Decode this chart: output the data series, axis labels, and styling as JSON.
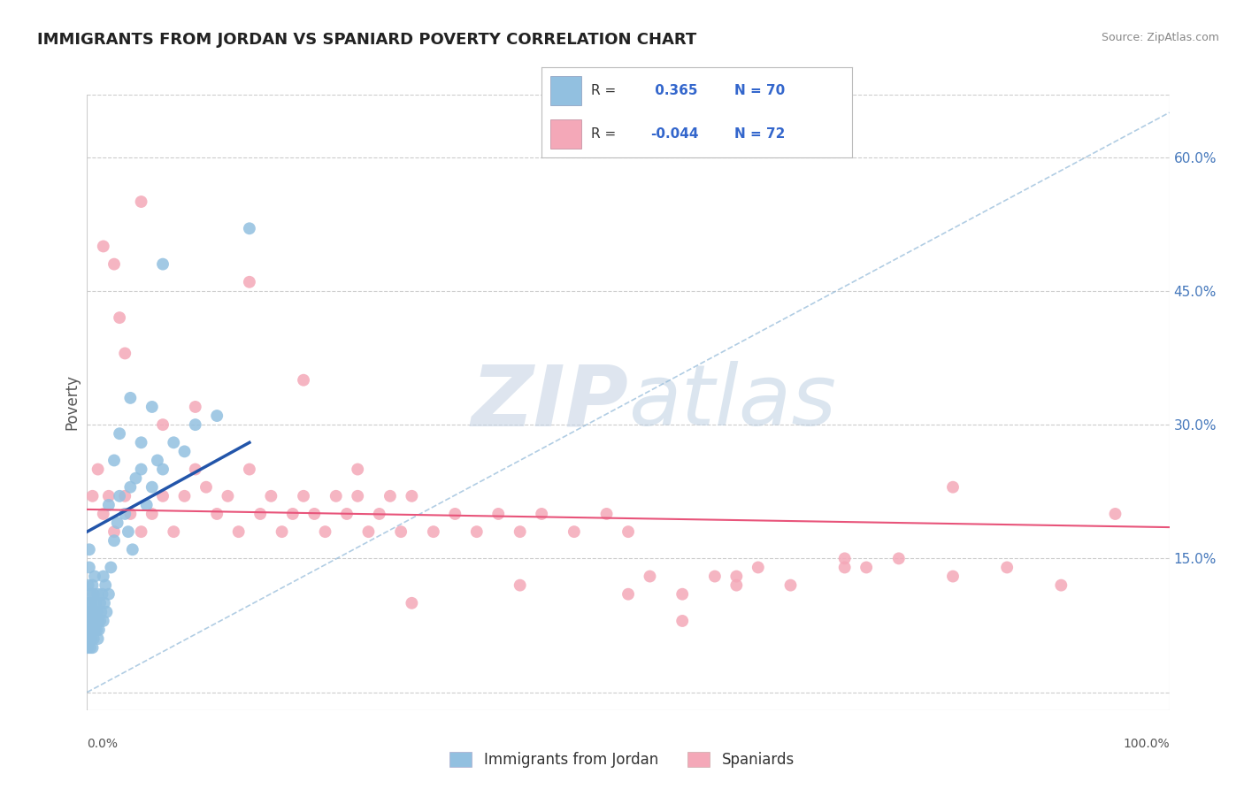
{
  "title": "IMMIGRANTS FROM JORDAN VS SPANIARD POVERTY CORRELATION CHART",
  "source": "Source: ZipAtlas.com",
  "ylabel": "Poverty",
  "y_ticks": [
    0.0,
    0.15,
    0.3,
    0.45,
    0.6
  ],
  "y_tick_labels_right": [
    "",
    "15.0%",
    "30.0%",
    "45.0%",
    "60.0%"
  ],
  "x_lim": [
    0.0,
    1.0
  ],
  "y_lim": [
    -0.02,
    0.67
  ],
  "R_jordan": 0.365,
  "N_jordan": 70,
  "R_spaniard": -0.044,
  "N_spaniard": 72,
  "color_jordan": "#92c0e0",
  "color_spaniard": "#f4a8b8",
  "color_jordan_reg": "#2255aa",
  "color_spaniard_reg": "#e8547a",
  "color_diag": "#90b8d8",
  "watermark_color": "#d0dff0",
  "background_color": "#ffffff",
  "grid_color": "#cccccc",
  "label_jordan": "Immigrants from Jordan",
  "label_spaniard": "Spaniards",
  "jordan_x": [
    0.0005,
    0.001,
    0.001,
    0.001,
    0.0015,
    0.002,
    0.002,
    0.002,
    0.002,
    0.003,
    0.003,
    0.003,
    0.003,
    0.004,
    0.004,
    0.004,
    0.005,
    0.005,
    0.005,
    0.005,
    0.006,
    0.006,
    0.006,
    0.007,
    0.007,
    0.007,
    0.008,
    0.008,
    0.009,
    0.009,
    0.01,
    0.01,
    0.01,
    0.011,
    0.012,
    0.012,
    0.013,
    0.014,
    0.015,
    0.015,
    0.016,
    0.017,
    0.018,
    0.02,
    0.02,
    0.022,
    0.025,
    0.028,
    0.03,
    0.035,
    0.038,
    0.04,
    0.042,
    0.045,
    0.05,
    0.055,
    0.06,
    0.065,
    0.07,
    0.08,
    0.09,
    0.1,
    0.12,
    0.025,
    0.03,
    0.04,
    0.05,
    0.06,
    0.07,
    0.15
  ],
  "jordan_y": [
    0.05,
    0.06,
    0.09,
    0.12,
    0.07,
    0.08,
    0.1,
    0.14,
    0.16,
    0.05,
    0.07,
    0.09,
    0.11,
    0.06,
    0.08,
    0.1,
    0.05,
    0.07,
    0.09,
    0.12,
    0.06,
    0.08,
    0.11,
    0.07,
    0.09,
    0.13,
    0.08,
    0.1,
    0.07,
    0.09,
    0.06,
    0.08,
    0.11,
    0.07,
    0.08,
    0.1,
    0.09,
    0.11,
    0.08,
    0.13,
    0.1,
    0.12,
    0.09,
    0.11,
    0.21,
    0.14,
    0.17,
    0.19,
    0.22,
    0.2,
    0.18,
    0.23,
    0.16,
    0.24,
    0.25,
    0.21,
    0.23,
    0.26,
    0.25,
    0.28,
    0.27,
    0.3,
    0.31,
    0.26,
    0.29,
    0.33,
    0.28,
    0.32,
    0.48,
    0.52
  ],
  "spaniard_x": [
    0.005,
    0.01,
    0.015,
    0.02,
    0.025,
    0.03,
    0.035,
    0.04,
    0.05,
    0.06,
    0.07,
    0.08,
    0.09,
    0.1,
    0.11,
    0.12,
    0.13,
    0.14,
    0.15,
    0.16,
    0.17,
    0.18,
    0.19,
    0.2,
    0.21,
    0.22,
    0.23,
    0.24,
    0.25,
    0.26,
    0.27,
    0.28,
    0.29,
    0.3,
    0.32,
    0.34,
    0.36,
    0.38,
    0.4,
    0.42,
    0.45,
    0.48,
    0.5,
    0.52,
    0.55,
    0.58,
    0.6,
    0.62,
    0.65,
    0.7,
    0.72,
    0.75,
    0.8,
    0.85,
    0.9,
    0.95,
    0.015,
    0.025,
    0.035,
    0.05,
    0.07,
    0.1,
    0.15,
    0.2,
    0.25,
    0.3,
    0.4,
    0.5,
    0.6,
    0.7,
    0.8,
    0.55
  ],
  "spaniard_y": [
    0.22,
    0.25,
    0.2,
    0.22,
    0.18,
    0.42,
    0.22,
    0.2,
    0.18,
    0.2,
    0.22,
    0.18,
    0.22,
    0.25,
    0.23,
    0.2,
    0.22,
    0.18,
    0.25,
    0.2,
    0.22,
    0.18,
    0.2,
    0.22,
    0.2,
    0.18,
    0.22,
    0.2,
    0.22,
    0.18,
    0.2,
    0.22,
    0.18,
    0.22,
    0.18,
    0.2,
    0.18,
    0.2,
    0.18,
    0.2,
    0.18,
    0.2,
    0.18,
    0.13,
    0.11,
    0.13,
    0.12,
    0.14,
    0.12,
    0.15,
    0.14,
    0.15,
    0.13,
    0.14,
    0.12,
    0.2,
    0.5,
    0.48,
    0.38,
    0.55,
    0.3,
    0.32,
    0.46,
    0.35,
    0.25,
    0.1,
    0.12,
    0.11,
    0.13,
    0.14,
    0.23,
    0.08
  ]
}
